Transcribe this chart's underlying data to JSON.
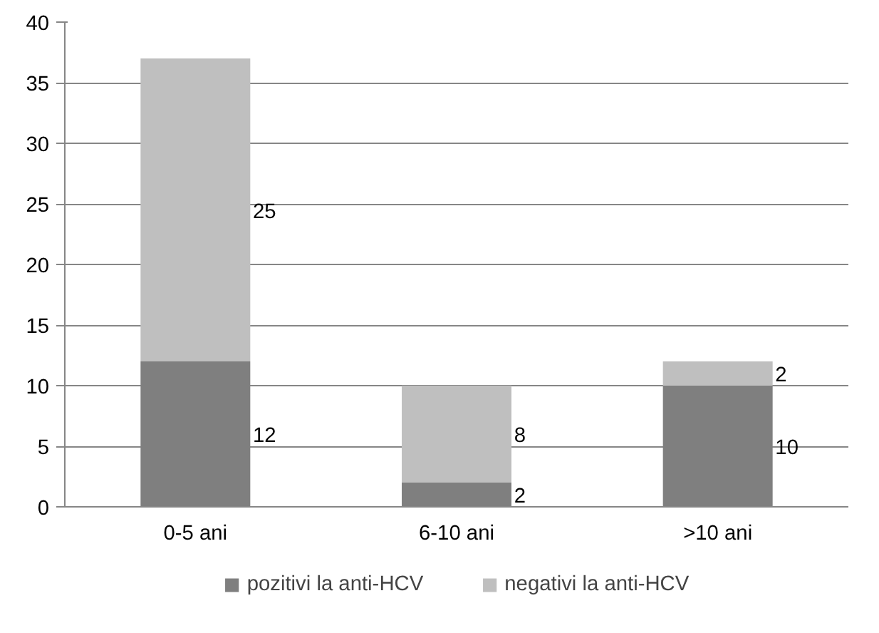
{
  "chart_data": {
    "type": "bar",
    "stacked": true,
    "categories": [
      "0-5 ani",
      "6-10 ani",
      ">10 ani"
    ],
    "series": [
      {
        "name": "pozitivi la anti-HCV",
        "color": "#7f7f7f",
        "values": [
          12,
          2,
          10
        ]
      },
      {
        "name": "negativi la anti-HCV",
        "color": "#bfbfbf",
        "values": [
          25,
          8,
          2
        ]
      }
    ],
    "ylim": [
      0,
      40
    ],
    "yticks": [
      0,
      5,
      10,
      15,
      20,
      25,
      30,
      35,
      40
    ],
    "grid": "y",
    "legend": "bottom",
    "data_labels": true
  }
}
